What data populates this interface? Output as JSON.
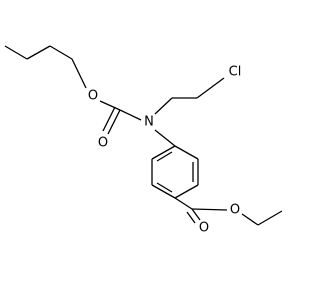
{
  "atoms": [
    {
      "label": "O"
    },
    {
      "label": "O"
    },
    {
      "label": "N"
    },
    {
      "label": "Cl"
    },
    {
      "label": "O"
    },
    {
      "label": "O"
    }
  ]
}
